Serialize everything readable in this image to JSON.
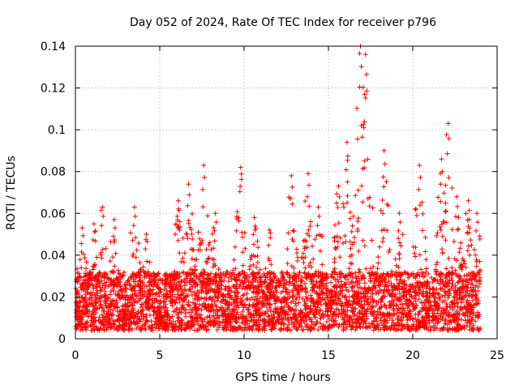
{
  "chart_data": {
    "type": "scatter",
    "title": "Day 052 of 2024, Rate Of TEC Index for receiver p796",
    "xlabel": "GPS time / hours",
    "ylabel": "ROTI / TECUs",
    "xlim": [
      0,
      25
    ],
    "ylim": [
      0,
      0.14
    ],
    "xticks": [
      0,
      5,
      10,
      15,
      20,
      25
    ],
    "xtick_labels": [
      "0",
      "5",
      "10",
      "15",
      "20",
      "25"
    ],
    "yticks": [
      0,
      0.02,
      0.04,
      0.06,
      0.08,
      0.1,
      0.12,
      0.14
    ],
    "ytick_labels": [
      "0",
      "0.02",
      "0.04",
      "0.06",
      "0.08",
      "0.1",
      "0.12",
      "0.14"
    ],
    "grid": true,
    "marker": "+",
    "marker_color": "#ff0000",
    "series": [
      {
        "name": "ROTI",
        "note": "dense scatter of ~one point per sample; representative envelope peaks listed as [hour, ROTI]",
        "peaks": [
          [
            0.4,
            0.053
          ],
          [
            1.1,
            0.055
          ],
          [
            1.6,
            0.063
          ],
          [
            2.3,
            0.057
          ],
          [
            3.5,
            0.063
          ],
          [
            4.2,
            0.05
          ],
          [
            6.1,
            0.066
          ],
          [
            6.7,
            0.074
          ],
          [
            7.6,
            0.083
          ],
          [
            8.3,
            0.06
          ],
          [
            9.8,
            0.082
          ],
          [
            10.6,
            0.058
          ],
          [
            11.5,
            0.052
          ],
          [
            12.8,
            0.078
          ],
          [
            13.8,
            0.079
          ],
          [
            14.4,
            0.063
          ],
          [
            15.6,
            0.073
          ],
          [
            16.1,
            0.094
          ],
          [
            16.9,
            0.14
          ],
          [
            17.2,
            0.136
          ],
          [
            18.3,
            0.09
          ],
          [
            19.2,
            0.06
          ],
          [
            20.4,
            0.083
          ],
          [
            21.7,
            0.086
          ],
          [
            22.1,
            0.103
          ],
          [
            22.6,
            0.068
          ],
          [
            23.3,
            0.066
          ],
          [
            23.8,
            0.06
          ]
        ]
      }
    ]
  }
}
